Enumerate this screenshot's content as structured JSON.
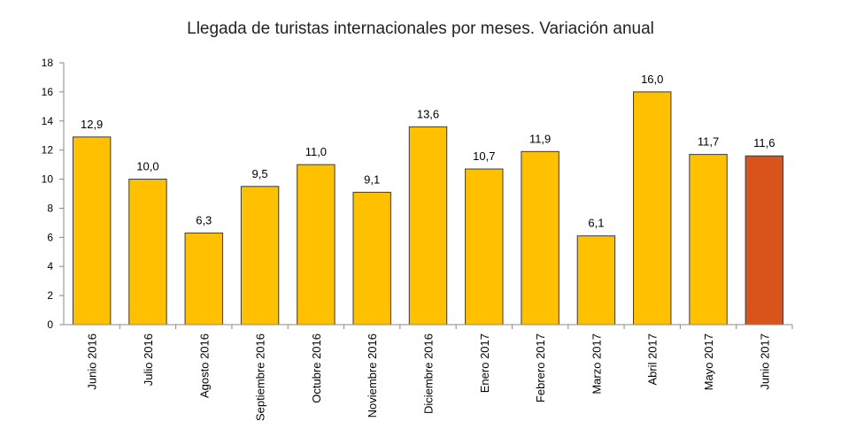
{
  "chart_data": {
    "type": "bar",
    "title": "Llegada de turistas internacionales por meses. Variación anual",
    "xlabel": "",
    "ylabel": "",
    "ylim": [
      0,
      18
    ],
    "yticks": [
      "0",
      "2",
      "4",
      "6",
      "8",
      "10",
      "12",
      "14",
      "16",
      "18"
    ],
    "grid": false,
    "categories": [
      "Junio 2016",
      "Julio 2016",
      "Agosto 2016",
      "Septiembre 2016",
      "Octubre 2016",
      "Noviembre 2016",
      "Diciembre 2016",
      "Enero 2017",
      "Febrero 2017",
      "Marzo 2017",
      "Abril 2017",
      "Mayo 2017",
      "Junio 2017"
    ],
    "values": [
      12.9,
      10.0,
      6.3,
      9.5,
      11.0,
      9.1,
      13.6,
      10.7,
      11.9,
      6.1,
      16.0,
      11.7,
      11.6
    ],
    "data_labels": [
      "12,9",
      "10,0",
      "6,3",
      "9,5",
      "11,0",
      "9,1",
      "13,6",
      "10,7",
      "11,9",
      "6,1",
      "16,0",
      "11,7",
      "11,6"
    ],
    "bar_color": "#FFC000",
    "highlight_color": "#D9541A",
    "highlight_index": 12
  }
}
